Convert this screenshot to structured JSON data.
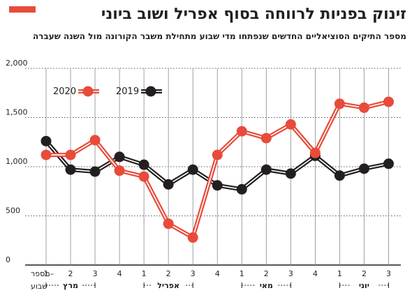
{
  "title": "זינוק בפניות לרווחה בסוף אפריל ושוב ביוני",
  "subtitle": "מספר התיקים הסוציאליים החדשים שנפתחו מדי שבוע מתחילת משבר הקורונה מול השנה שעברה",
  "colors": {
    "2020": "#e84b3a",
    "2019": "#231f20",
    "accent": "#e84b3a"
  },
  "chart_data": {
    "type": "line",
    "categories": [
      "1",
      "2",
      "3",
      "4",
      "1",
      "2",
      "3",
      "4",
      "1",
      "2",
      "3",
      "4",
      "1",
      "2",
      "3"
    ],
    "x_axis_label": "מספר שבוע",
    "months": [
      {
        "name": "מרץ",
        "from": 0,
        "to": 2
      },
      {
        "name": "אפריל",
        "from": 4,
        "to": 6
      },
      {
        "name": "מאי",
        "from": 8,
        "to": 10
      },
      {
        "name": "יוני",
        "from": 12,
        "to": 14
      }
    ],
    "ylim": [
      0,
      2000
    ],
    "yticks": [
      0,
      500,
      1000,
      1500,
      2000
    ],
    "ytick_labels": [
      "0",
      "500",
      "1,000",
      "1,500",
      "2,000"
    ],
    "grid": true,
    "legend_position": "top-left",
    "series": [
      {
        "name": "2020",
        "color": "#e84b3a",
        "values": [
          1120,
          1120,
          1270,
          960,
          900,
          420,
          280,
          1120,
          1360,
          1290,
          1430,
          1140,
          1640,
          1600,
          1660
        ]
      },
      {
        "name": "2019",
        "color": "#231f20",
        "values": [
          1260,
          970,
          950,
          1100,
          1020,
          820,
          970,
          810,
          770,
          970,
          930,
          1110,
          910,
          980,
          1030
        ]
      }
    ]
  }
}
